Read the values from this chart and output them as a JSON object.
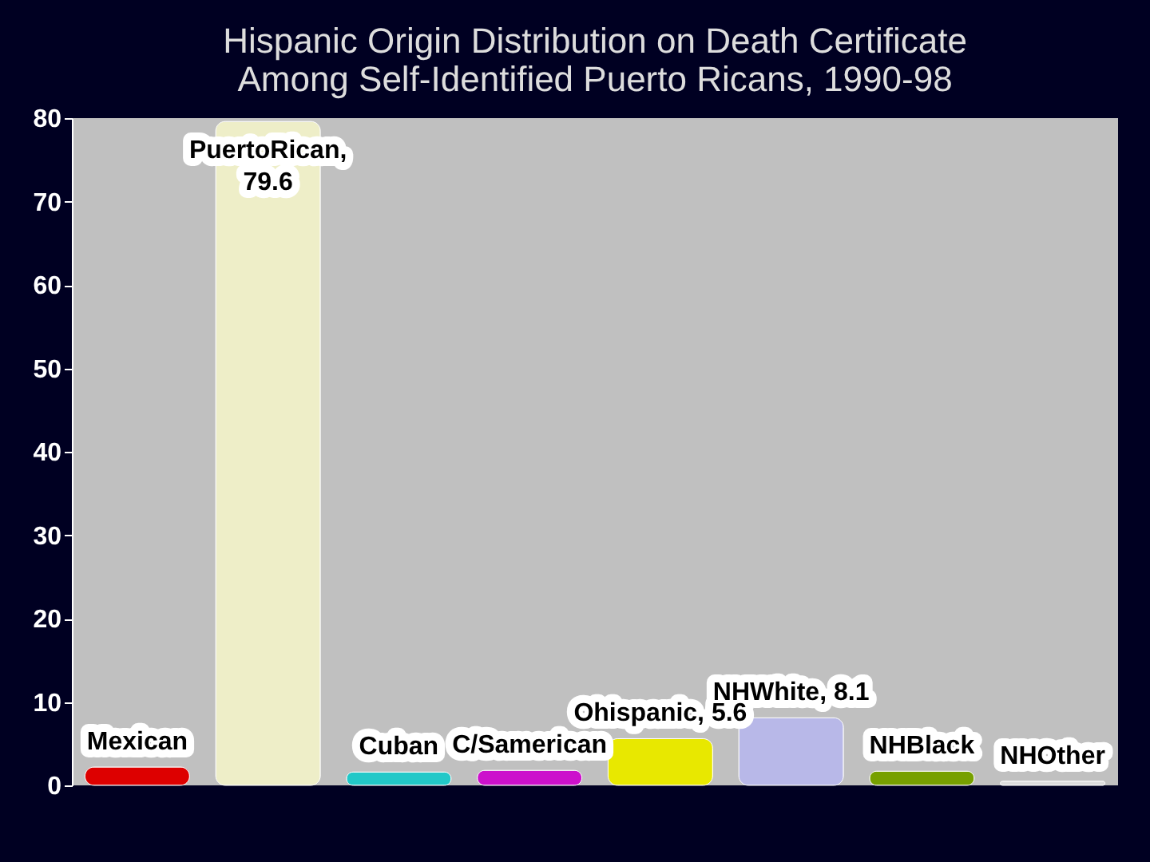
{
  "chart_data": {
    "type": "bar",
    "title": "Hispanic Origin Distribution on Death Certificate\nAmong Self-Identified Puerto Ricans, 1990-98",
    "categories": [
      null,
      null,
      null,
      null,
      null,
      null,
      null,
      null
    ],
    "values": [
      2.2,
      79.6,
      1.6,
      1.8,
      5.6,
      8.1,
      1.7,
      0.5
    ],
    "colors": [
      "#dd0000",
      "#eeeec8",
      "#22c8c8",
      "#cc11cc",
      "#e8e800",
      "#b8b8e8",
      "#77a000",
      "#dcdcdc"
    ],
    "value_labels": [
      "Mexican",
      "PuertoRican,\n79.6",
      "Cuban",
      "C/Samerican",
      "Ohispanic, 5.6",
      "NHWhite, 8.1",
      "NHBlack",
      "NHOther"
    ],
    "ylim": [
      0,
      80
    ],
    "yticks": [
      0,
      10,
      20,
      30,
      40,
      50,
      60,
      70,
      80
    ],
    "grid": false
  }
}
